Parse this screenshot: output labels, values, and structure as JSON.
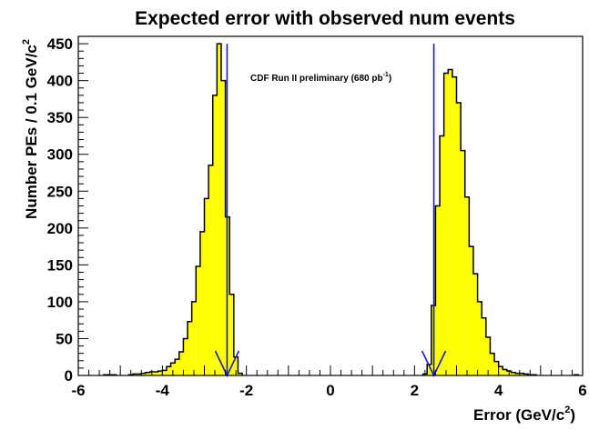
{
  "chart_data": {
    "type": "histogram",
    "title": "Expected error with observed num events",
    "xlabel": "Error (GeV/c",
    "xlabel_sup": "2",
    "xlabel_close": ")",
    "ylabel": "Number PEs / 0.1 GeV/c",
    "ylabel_sup": "2",
    "annotation": "CDF Run II preliminary (680 pb",
    "annotation_sup": "-1",
    "annotation_close": ")",
    "xlim": [
      -6,
      6
    ],
    "ylim": [
      0,
      460
    ],
    "bin_width": 0.1,
    "x_ticks": [
      "-6",
      "-4",
      "-2",
      "0",
      "2",
      "4",
      "6"
    ],
    "x_tick_values": [
      -6,
      -4,
      -2,
      0,
      2,
      4,
      6
    ],
    "y_ticks": [
      "0",
      "50",
      "100",
      "150",
      "200",
      "250",
      "300",
      "350",
      "400",
      "450"
    ],
    "y_tick_values": [
      0,
      50,
      100,
      150,
      200,
      250,
      300,
      350,
      400,
      450
    ],
    "fill_color": "#ffff00",
    "line_color": "#000000",
    "marker_color": "#1a1acc",
    "observed_errors": [
      -2.46,
      2.46
    ],
    "marker_top": 450,
    "bins": [
      {
        "x": -5.4,
        "y": 1
      },
      {
        "x": -5.3,
        "y": 1
      },
      {
        "x": -5.2,
        "y": 1
      },
      {
        "x": -4.8,
        "y": 1
      },
      {
        "x": -4.7,
        "y": 2
      },
      {
        "x": -4.6,
        "y": 2
      },
      {
        "x": -4.5,
        "y": 3
      },
      {
        "x": -4.4,
        "y": 4
      },
      {
        "x": -4.3,
        "y": 5
      },
      {
        "x": -4.2,
        "y": 5
      },
      {
        "x": -4.1,
        "y": 6
      },
      {
        "x": -4.0,
        "y": 7
      },
      {
        "x": -3.9,
        "y": 12
      },
      {
        "x": -3.8,
        "y": 17
      },
      {
        "x": -3.7,
        "y": 22
      },
      {
        "x": -3.6,
        "y": 32
      },
      {
        "x": -3.5,
        "y": 50
      },
      {
        "x": -3.4,
        "y": 73
      },
      {
        "x": -3.3,
        "y": 100
      },
      {
        "x": -3.2,
        "y": 148
      },
      {
        "x": -3.1,
        "y": 195
      },
      {
        "x": -3.0,
        "y": 240
      },
      {
        "x": -2.9,
        "y": 285
      },
      {
        "x": -2.8,
        "y": 380
      },
      {
        "x": -2.7,
        "y": 450
      },
      {
        "x": -2.6,
        "y": 400
      },
      {
        "x": -2.5,
        "y": 215
      },
      {
        "x": -2.4,
        "y": 110
      },
      {
        "x": -2.3,
        "y": 25
      },
      {
        "x": -2.2,
        "y": 3
      },
      {
        "x": 2.2,
        "y": 2
      },
      {
        "x": 2.3,
        "y": 15
      },
      {
        "x": 2.4,
        "y": 95
      },
      {
        "x": 2.5,
        "y": 230
      },
      {
        "x": 2.6,
        "y": 325
      },
      {
        "x": 2.7,
        "y": 410
      },
      {
        "x": 2.8,
        "y": 415
      },
      {
        "x": 2.9,
        "y": 405
      },
      {
        "x": 3.0,
        "y": 370
      },
      {
        "x": 3.1,
        "y": 305
      },
      {
        "x": 3.2,
        "y": 242
      },
      {
        "x": 3.3,
        "y": 175
      },
      {
        "x": 3.4,
        "y": 138
      },
      {
        "x": 3.5,
        "y": 100
      },
      {
        "x": 3.6,
        "y": 78
      },
      {
        "x": 3.7,
        "y": 52
      },
      {
        "x": 3.8,
        "y": 30
      },
      {
        "x": 3.9,
        "y": 19
      },
      {
        "x": 4.0,
        "y": 12
      },
      {
        "x": 4.1,
        "y": 8
      },
      {
        "x": 4.2,
        "y": 6
      },
      {
        "x": 4.3,
        "y": 4
      },
      {
        "x": 4.4,
        "y": 3
      },
      {
        "x": 4.5,
        "y": 3
      },
      {
        "x": 4.6,
        "y": 2
      },
      {
        "x": 4.7,
        "y": 1
      },
      {
        "x": 4.8,
        "y": 1
      },
      {
        "x": 5.8,
        "y": 1
      }
    ]
  }
}
